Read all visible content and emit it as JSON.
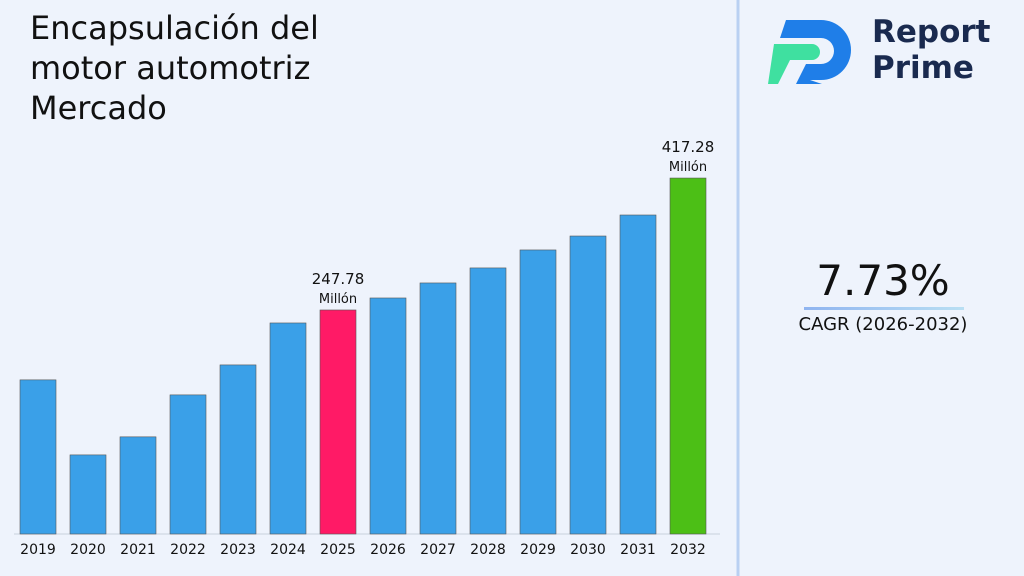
{
  "chart_data": {
    "type": "bar",
    "title": "Encapsulación del motor automotriz Mercado",
    "categories": [
      "2019",
      "2020",
      "2021",
      "2022",
      "2023",
      "2024",
      "2025",
      "2026",
      "2027",
      "2028",
      "2029",
      "2030",
      "2031",
      "2032"
    ],
    "values": [
      158,
      61.6,
      84.8,
      138.7,
      177.2,
      231.1,
      247.78,
      263.2,
      282.5,
      301.8,
      324.9,
      342.8,
      369.8,
      417.28
    ],
    "value_labels": [
      null,
      null,
      null,
      null,
      null,
      null,
      "247.78",
      null,
      null,
      null,
      null,
      null,
      null,
      "417.28"
    ],
    "value_unit": "Millón",
    "colors": [
      "#3aa0e8",
      "#3aa0e8",
      "#3aa0e8",
      "#3aa0e8",
      "#3aa0e8",
      "#3aa0e8",
      "#ff1a66",
      "#3aa0e8",
      "#3aa0e8",
      "#3aa0e8",
      "#3aa0e8",
      "#3aa0e8",
      "#3aa0e8",
      "#4cbf16"
    ],
    "ylim": [
      -40,
      479
    ]
  },
  "brand": {
    "line1": "Report",
    "line2": "Prime"
  },
  "cagr": {
    "value": "7.73%",
    "label": "CAGR (2026-2032)"
  }
}
